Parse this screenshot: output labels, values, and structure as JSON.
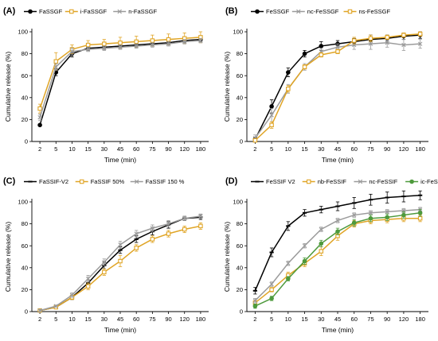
{
  "figure_colors": {
    "black": "#000000",
    "orange": "#E0A526",
    "gray": "#9B9B9B",
    "green": "#4E9A3C"
  },
  "chart_data": [
    {
      "panel": "(A)",
      "type": "line",
      "categories": [
        "2",
        "5",
        "10",
        "15",
        "30",
        "45",
        "60",
        "75",
        "90",
        "120",
        "180"
      ],
      "xlabel": "Time (min)",
      "ylabel": "Cumulative release (%)",
      "ylim": [
        0,
        100
      ],
      "yticks": [
        "0",
        "20",
        "40",
        "60",
        "80",
        "100"
      ],
      "grid": false,
      "legend": "top",
      "series": [
        {
          "name": "FaSSGF",
          "color": "#000000",
          "marker": "circle",
          "values": [
            15,
            63,
            80,
            85,
            86,
            87,
            88,
            89,
            90,
            92,
            93
          ],
          "err": [
            1,
            3,
            3,
            2,
            2,
            2,
            2,
            2,
            2,
            2,
            2
          ]
        },
        {
          "name": "i-FaSSGF",
          "color": "#E0A526",
          "marker": "square",
          "values": [
            30,
            73,
            84,
            88,
            89,
            90,
            91,
            92,
            93,
            94,
            95
          ],
          "err": [
            4,
            8,
            4,
            4,
            4,
            5,
            5,
            5,
            5,
            5,
            5
          ]
        },
        {
          "name": "n-FaSSGF",
          "color": "#9B9B9B",
          "marker": "x",
          "values": [
            22,
            68,
            82,
            84,
            85,
            86,
            87,
            88,
            89,
            91,
            92
          ],
          "err": [
            3,
            3,
            3,
            2,
            2,
            2,
            2,
            2,
            2,
            2,
            2
          ]
        }
      ]
    },
    {
      "panel": "(B)",
      "type": "line",
      "categories": [
        "2",
        "5",
        "10",
        "15",
        "30",
        "45",
        "60",
        "75",
        "90",
        "120",
        "180"
      ],
      "xlabel": "Time (min)",
      "ylabel": "Cumulative release (%)",
      "ylim": [
        0,
        100
      ],
      "yticks": [
        "0",
        "20",
        "40",
        "60",
        "80",
        "100"
      ],
      "grid": false,
      "legend": "top",
      "series": [
        {
          "name": "FeSSGF",
          "color": "#000000",
          "marker": "circle",
          "values": [
            2,
            32,
            63,
            80,
            87,
            89,
            91,
            93,
            94,
            96,
            97
          ],
          "err": [
            2,
            6,
            4,
            3,
            4,
            3,
            3,
            4,
            3,
            3,
            3
          ]
        },
        {
          "name": "nc-FeSSGF",
          "color": "#9B9B9B",
          "marker": "x",
          "values": [
            3,
            24,
            48,
            68,
            82,
            86,
            88,
            89,
            90,
            88,
            89
          ],
          "err": [
            3,
            6,
            4,
            3,
            3,
            3,
            4,
            5,
            4,
            5,
            4
          ]
        },
        {
          "name": "ns-FeSSGF",
          "color": "#E0A526",
          "marker": "square",
          "values": [
            1,
            15,
            48,
            68,
            79,
            82,
            92,
            94,
            95,
            97,
            98
          ],
          "err": [
            1,
            3,
            3,
            2,
            2,
            2,
            3,
            3,
            2,
            2,
            2
          ]
        }
      ]
    },
    {
      "panel": "(C)",
      "type": "line",
      "categories": [
        "2",
        "5",
        "10",
        "15",
        "30",
        "45",
        "60",
        "75",
        "90",
        "120",
        "180"
      ],
      "xlabel": "Time (min)",
      "ylabel": "Cumulative release (%)",
      "ylim": [
        0,
        100
      ],
      "yticks": [
        "0",
        "20",
        "40",
        "60",
        "80",
        "100"
      ],
      "grid": false,
      "legend": "top",
      "series": [
        {
          "name": "FaSSIF-V2",
          "color": "#000000",
          "marker": "dash",
          "values": [
            1,
            4,
            13,
            26,
            42,
            56,
            66,
            73,
            79,
            85,
            86
          ],
          "err": [
            1,
            1,
            2,
            3,
            3,
            3,
            3,
            3,
            3,
            2,
            2
          ]
        },
        {
          "name": "FaSSIF 50%",
          "color": "#E0A526",
          "marker": "square",
          "values": [
            1,
            4,
            13,
            23,
            36,
            46,
            58,
            66,
            71,
            75,
            78
          ],
          "err": [
            1,
            1,
            2,
            3,
            3,
            5,
            3,
            3,
            3,
            3,
            3
          ]
        },
        {
          "name": "FaSSIF 150 %",
          "color": "#9B9B9B",
          "marker": "x",
          "values": [
            1,
            5,
            15,
            30,
            45,
            61,
            71,
            76,
            80,
            85,
            87
          ],
          "err": [
            1,
            1,
            2,
            3,
            3,
            3,
            3,
            3,
            3,
            2,
            2
          ]
        }
      ]
    },
    {
      "panel": "(D)",
      "type": "line",
      "categories": [
        "2",
        "5",
        "10",
        "15",
        "30",
        "45",
        "60",
        "75",
        "90",
        "120",
        "180"
      ],
      "xlabel": "Time (min)",
      "ylabel": "Cumulative release (%)",
      "ylim": [
        0,
        100
      ],
      "yticks": [
        "0",
        "20",
        "40",
        "60",
        "80",
        "100"
      ],
      "grid": false,
      "legend": "top",
      "series": [
        {
          "name": "FeSSIF V2",
          "color": "#000000",
          "marker": "dash",
          "values": [
            19,
            54,
            78,
            90,
            93,
            96,
            99,
            102,
            104,
            105,
            106
          ],
          "err": [
            3,
            4,
            4,
            3,
            3,
            4,
            5,
            5,
            5,
            5,
            4
          ]
        },
        {
          "name": "nb-FeSSIF",
          "color": "#E0A526",
          "marker": "square",
          "values": [
            8,
            20,
            33,
            44,
            55,
            69,
            80,
            83,
            84,
            85,
            85
          ],
          "err": [
            2,
            2,
            3,
            3,
            4,
            4,
            3,
            3,
            3,
            3,
            3
          ]
        },
        {
          "name": "nc-FeSSIF",
          "color": "#9B9B9B",
          "marker": "x",
          "values": [
            10,
            25,
            44,
            60,
            75,
            83,
            88,
            90,
            91,
            92,
            93
          ],
          "err": [
            2,
            2,
            2,
            2,
            2,
            2,
            2,
            2,
            2,
            2,
            2
          ]
        },
        {
          "name": "ic-FeSSIF",
          "color": "#4E9A3C",
          "marker": "circle",
          "values": [
            5,
            12,
            30,
            46,
            62,
            73,
            81,
            85,
            86,
            88,
            90
          ],
          "err": [
            2,
            2,
            2,
            3,
            3,
            3,
            3,
            3,
            3,
            3,
            3
          ]
        }
      ]
    }
  ]
}
